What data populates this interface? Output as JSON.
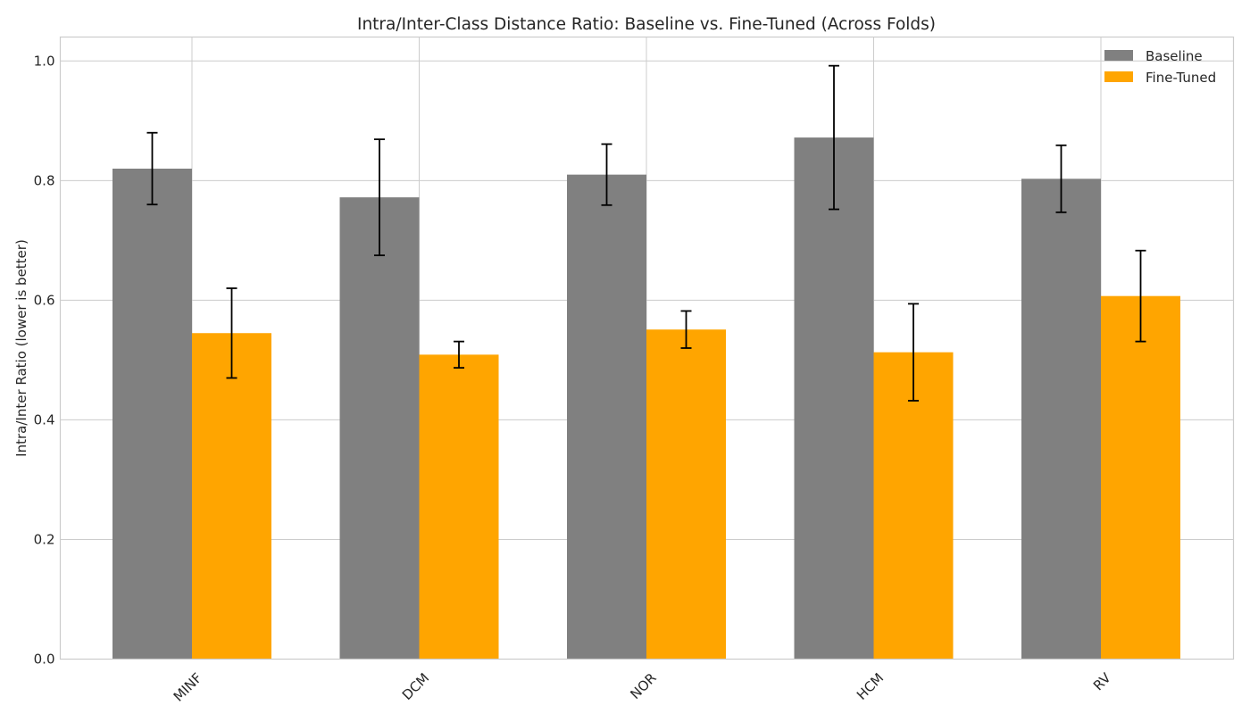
{
  "chart_data": {
    "type": "bar",
    "title": "Intra/Inter-Class Distance Ratio: Baseline vs. Fine-Tuned (Across Folds)",
    "xlabel": "",
    "ylabel": "Intra/Inter Ratio (lower is better)",
    "categories": [
      "MINF",
      "DCM",
      "NOR",
      "HCM",
      "RV"
    ],
    "ylim": [
      0,
      1.04
    ],
    "yticks": [
      0.0,
      0.2,
      0.4,
      0.6,
      0.8,
      1.0
    ],
    "ytick_labels": [
      "0.0",
      "0.2",
      "0.4",
      "0.6",
      "0.8",
      "1.0"
    ],
    "series": [
      {
        "name": "Baseline",
        "color": "#808080",
        "values": [
          0.82,
          0.772,
          0.81,
          0.872,
          0.803
        ],
        "errors": [
          0.06,
          0.097,
          0.051,
          0.12,
          0.056
        ]
      },
      {
        "name": "Fine-Tuned",
        "color": "#ffa500",
        "values": [
          0.545,
          0.509,
          0.551,
          0.513,
          0.607
        ],
        "errors": [
          0.075,
          0.022,
          0.031,
          0.081,
          0.076
        ]
      }
    ],
    "grid": true,
    "legend_position": "top-right",
    "xtick_rotation": 45
  }
}
